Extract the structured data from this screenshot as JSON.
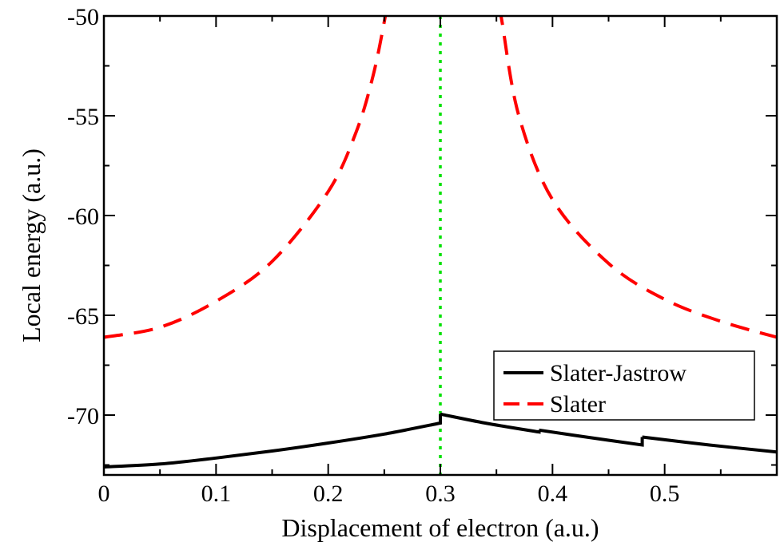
{
  "chart_data": {
    "type": "line",
    "title": "",
    "xlabel": "Displacement of electron (a.u.)",
    "ylabel": "Local energy (a.u.)",
    "xlim": [
      0,
      0.6
    ],
    "ylim": [
      -73,
      -50
    ],
    "x_ticks": [
      0,
      0.1,
      0.2,
      0.3,
      0.4,
      0.5
    ],
    "x_tick_labels": [
      "0",
      "0.1",
      "0.2",
      "0.3",
      "0.4",
      "0.5"
    ],
    "y_ticks": [
      -70,
      -65,
      -60,
      -55,
      -50
    ],
    "y_tick_labels": [
      "-70",
      "-65",
      "-60",
      "-55",
      "-50"
    ],
    "grid": false,
    "legend_position": "bottom-right",
    "reference_line": {
      "x": 0.3,
      "style": "dotted",
      "color": "#00e000"
    },
    "series": [
      {
        "name": "Slater-Jastrow",
        "color": "#000000",
        "dash": "solid",
        "segments": [
          [
            [
              0,
              -72.6
            ],
            [
              0.05,
              -72.45
            ],
            [
              0.1,
              -72.15
            ],
            [
              0.15,
              -71.8
            ],
            [
              0.2,
              -71.4
            ],
            [
              0.25,
              -70.95
            ],
            [
              0.3,
              -70.4
            ],
            [
              0.3,
              -69.95
            ]
          ],
          [
            [
              0.3,
              -69.95
            ],
            [
              0.34,
              -70.4
            ],
            [
              0.388,
              -70.85
            ],
            [
              0.388,
              -70.75
            ]
          ],
          [
            [
              0.388,
              -70.75
            ],
            [
              0.43,
              -71.1
            ],
            [
              0.48,
              -71.5
            ],
            [
              0.48,
              -71.1
            ]
          ],
          [
            [
              0.48,
              -71.1
            ],
            [
              0.54,
              -71.5
            ],
            [
              0.6,
              -71.85
            ]
          ]
        ]
      },
      {
        "name": "Slater",
        "color": "#ff0000",
        "dash": "dashed",
        "segments": [
          [
            [
              0,
              -66.1
            ],
            [
              0.05,
              -65.6
            ],
            [
              0.1,
              -64.3
            ],
            [
              0.15,
              -62.3
            ],
            [
              0.2,
              -58.8
            ],
            [
              0.225,
              -55.8
            ],
            [
              0.24,
              -53.0
            ],
            [
              0.25,
              -50.3
            ],
            [
              0.252,
              -49.5
            ]
          ],
          [
            [
              0.353,
              -49.5
            ],
            [
              0.355,
              -50.3
            ],
            [
              0.37,
              -55.0
            ],
            [
              0.4,
              -59.2
            ],
            [
              0.45,
              -62.4
            ],
            [
              0.5,
              -64.2
            ],
            [
              0.55,
              -65.3
            ],
            [
              0.6,
              -66.1
            ]
          ]
        ]
      }
    ]
  }
}
